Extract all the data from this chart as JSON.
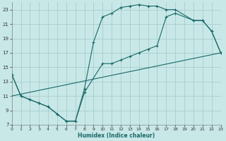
{
  "xlabel": "Humidex (Indice chaleur)",
  "bg_color": "#c8e8e8",
  "grid_color": "#a8cccc",
  "line_color": "#1a6868",
  "xlim": [
    0,
    23
  ],
  "ylim": [
    7,
    24
  ],
  "xticks": [
    0,
    1,
    2,
    3,
    4,
    5,
    6,
    7,
    8,
    9,
    10,
    11,
    12,
    13,
    14,
    15,
    16,
    17,
    18,
    19,
    20,
    21,
    22,
    23
  ],
  "yticks": [
    7,
    9,
    11,
    13,
    15,
    17,
    19,
    21,
    23
  ],
  "line1_x": [
    0,
    1,
    2,
    3,
    4,
    5,
    6,
    7,
    8,
    9,
    10,
    11,
    12,
    13,
    14,
    15,
    16,
    17,
    18,
    20,
    21,
    22,
    23
  ],
  "line1_y": [
    14,
    11,
    10.5,
    10,
    9.5,
    8.5,
    7.5,
    7.5,
    12,
    18.5,
    22,
    22.5,
    23.3,
    23.5,
    23.7,
    23.5,
    23.5,
    23.0,
    23,
    21.5,
    21.5,
    20,
    17
  ],
  "line2_x": [
    0,
    1,
    2,
    3,
    4,
    5,
    6,
    7,
    8,
    10,
    11,
    12,
    13,
    14,
    15,
    16,
    17,
    18,
    20,
    21,
    22,
    23
  ],
  "line2_y": [
    14,
    11,
    10.5,
    10,
    9.5,
    8.5,
    7.5,
    7.5,
    11.5,
    15.5,
    15.5,
    16.0,
    16.5,
    17.0,
    17.5,
    18.0,
    22.0,
    22.5,
    21.5,
    21.5,
    20.0,
    17
  ],
  "line3_x": [
    0,
    23
  ],
  "line3_y": [
    11.0,
    17.0
  ]
}
